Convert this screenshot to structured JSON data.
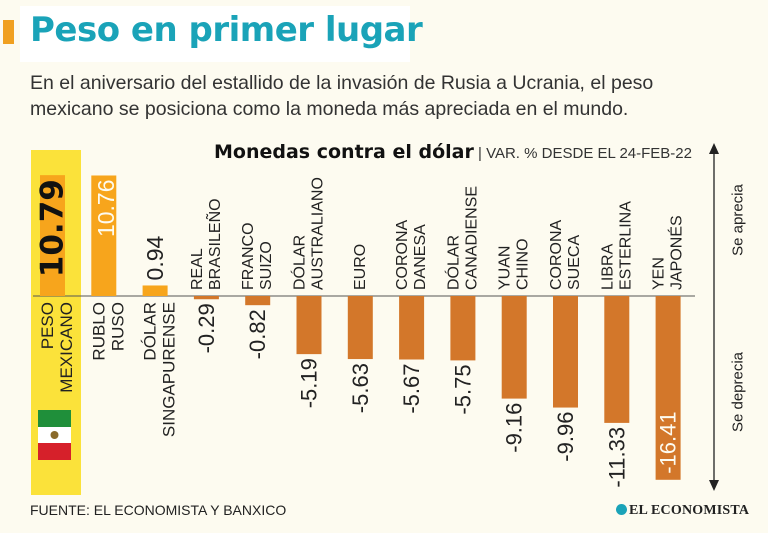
{
  "title": "Peso en primer lugar",
  "subtitle": "En el aniversario del estallido de la invasión de Rusia a Ucrania, el peso mexicano se posiciona como la moneda más apreciada en el mundo.",
  "chart_header": {
    "title": "Monedas contra el dólar",
    "note": "| VAR. % DESDE EL 24-FEB-22"
  },
  "source": "FUENTE: EL ECONOMISTA Y BANXICO",
  "brand": "EL ECONOMISTA",
  "colors": {
    "positive": "#f7a51c",
    "negative": "#d3772a",
    "highlight_bg": "#fbe23a",
    "title": "#1aa3b8"
  },
  "chart_data": {
    "type": "bar",
    "title": "Monedas contra el dólar",
    "note": "VAR. % DESDE EL 24-FEB-22",
    "categories": [
      [
        "PESO",
        "MEXICANO"
      ],
      [
        "RUBLO",
        "RUSO"
      ],
      [
        "DÓLAR",
        "SINGAPURENSE"
      ],
      [
        "REAL",
        "BRASILEÑO"
      ],
      [
        "FRANCO",
        "SUIZO"
      ],
      [
        "DÓLAR",
        "AUSTRALIANO"
      ],
      [
        "EURO"
      ],
      [
        "CORONA",
        "DANESA"
      ],
      [
        "DÓLAR",
        "CANADIENSE"
      ],
      [
        "YUAN",
        "CHINO"
      ],
      [
        "CORONA",
        "SUECA"
      ],
      [
        "LIBRA",
        "ESTERLINA"
      ],
      [
        "YEN",
        "JAPONÉS"
      ]
    ],
    "values": [
      10.79,
      10.76,
      0.94,
      -0.29,
      -0.82,
      -5.19,
      -5.63,
      -5.67,
      -5.75,
      -9.16,
      -9.96,
      -11.33,
      -16.41
    ],
    "value_labels": [
      "10.79",
      "10.76",
      "0.94",
      "-0.29",
      "-0.82",
      "-5.19",
      "-5.63",
      "-5.67",
      "-5.75",
      "-9.16",
      "-9.96",
      "-11.33",
      "-16.41"
    ],
    "axis_labels": {
      "up": "Se aprecia",
      "down": "Se deprecia"
    },
    "highlight": "PESO MEXICANO"
  }
}
